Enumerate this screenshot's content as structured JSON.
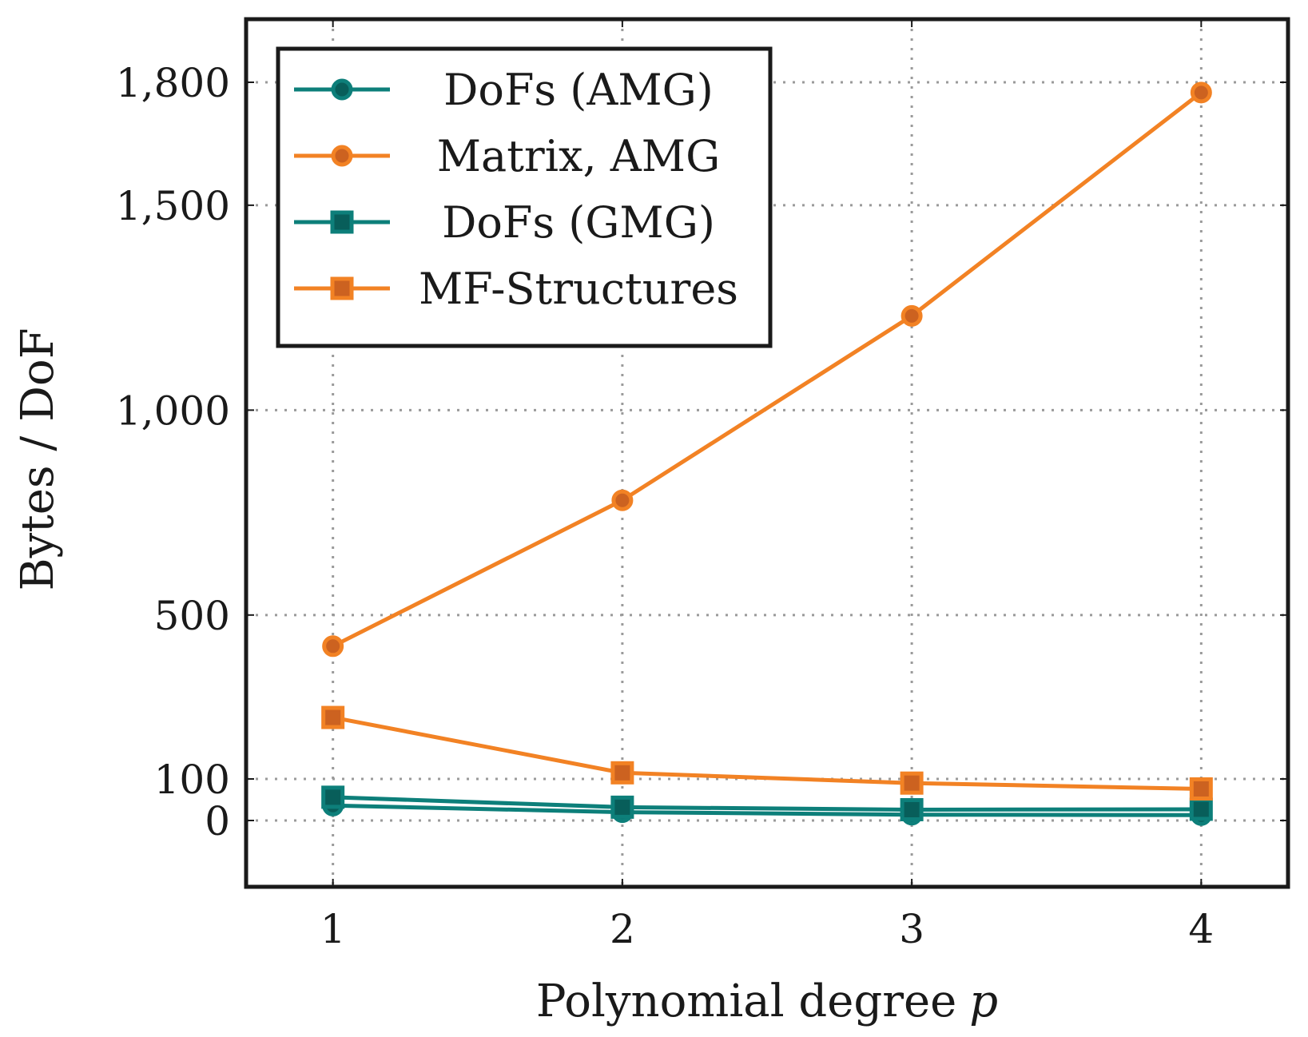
{
  "chart_data": {
    "type": "line",
    "title": "",
    "xlabel": "Polynomial degree",
    "xlabel_var": "p",
    "ylabel": "Bytes / DoF",
    "x": [
      1,
      2,
      3,
      4
    ],
    "xlim": [
      0.7,
      4.3
    ],
    "ylim": [
      -160,
      1930
    ],
    "xticks": [
      1,
      2,
      3,
      4
    ],
    "xtick_labels": [
      "1",
      "2",
      "3",
      "4"
    ],
    "yticks": [
      0,
      100,
      500,
      1000,
      1500,
      1800
    ],
    "ytick_labels": [
      "0",
      "100",
      "500",
      "1,000",
      "1,500",
      "1,800"
    ],
    "grid": true,
    "legend_position": "top-left",
    "series": [
      {
        "name": "DoFs (AMG)",
        "marker": "circle",
        "color": "#0d7f7a",
        "fill": "#085e5a",
        "values": [
          36,
          20,
          14,
          13
        ]
      },
      {
        "name": "Matrix, AMG",
        "marker": "circle",
        "color": "#f28224",
        "fill": "#cc6220",
        "values": [
          424,
          780,
          1230,
          1775
        ]
      },
      {
        "name": "DoFs (GMG)",
        "marker": "square",
        "color": "#0d7f7a",
        "fill": "#085e5a",
        "values": [
          56,
          32,
          26,
          27
        ]
      },
      {
        "name": "MF-Structures",
        "marker": "square",
        "color": "#f28224",
        "fill": "#cc6220",
        "values": [
          250,
          115,
          90,
          76
        ]
      }
    ]
  }
}
